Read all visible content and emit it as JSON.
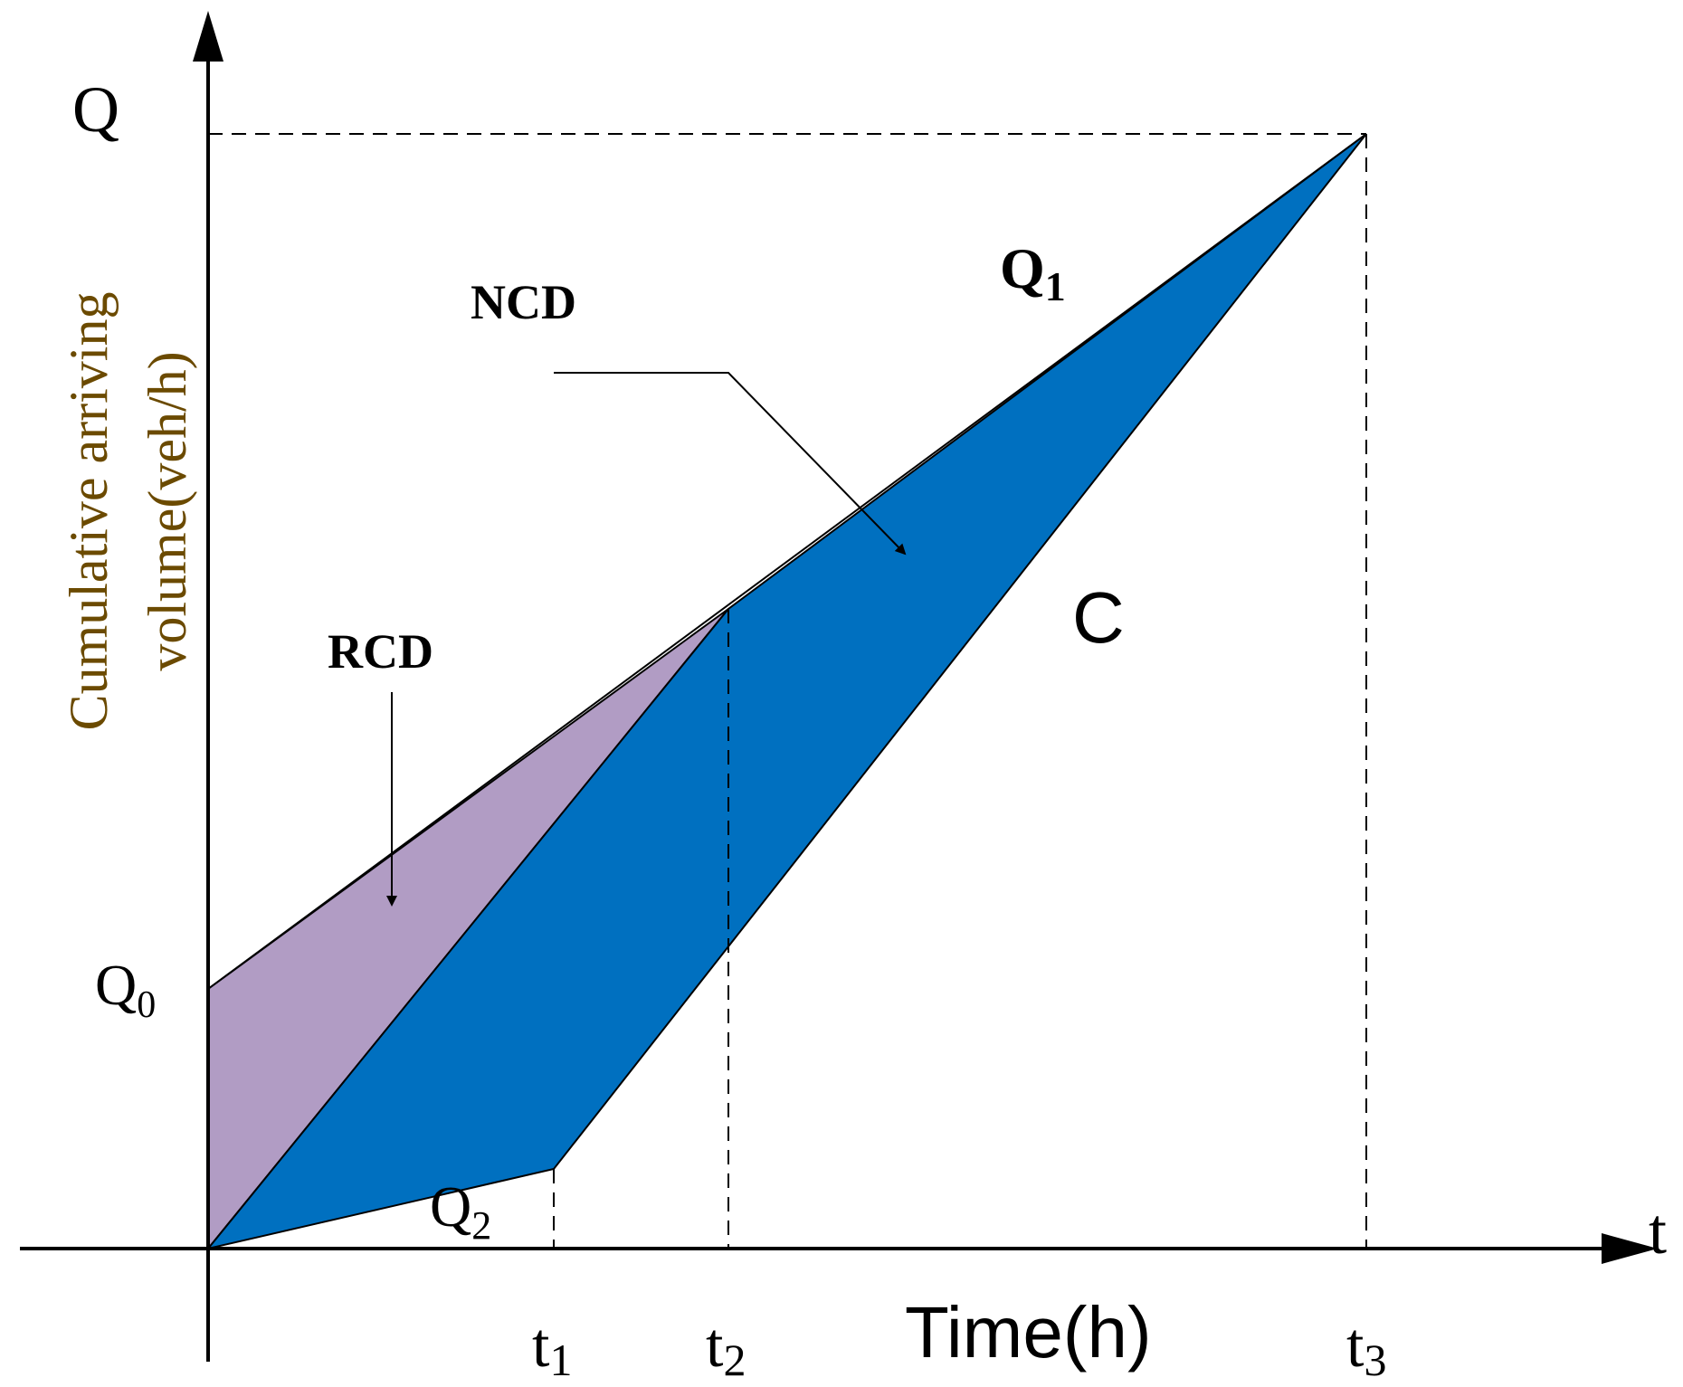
{
  "diagram": {
    "y_axis_symbol": "Q",
    "x_axis_symbol": "t",
    "y_axis_title_line1": "Cumulative arriving",
    "y_axis_title_line2": "volume(veh/h)",
    "x_axis_title": "Time(h)",
    "q0_label": "Q",
    "q0_sub": "0",
    "q1_label": "Q",
    "q1_sub": "1",
    "q2_label": "Q",
    "q2_sub": "2",
    "c_label": "C",
    "ncd_label": "NCD",
    "rcd_label": "RCD",
    "ticks": [
      {
        "base": "t",
        "sub": "1"
      },
      {
        "base": "t",
        "sub": "2"
      },
      {
        "base": "t",
        "sub": "3"
      }
    ],
    "colors": {
      "ncd_fill": "#0070c0",
      "rcd_fill": "#b19cc4",
      "axis": "#000000",
      "y_title": "#6b4a00"
    }
  }
}
